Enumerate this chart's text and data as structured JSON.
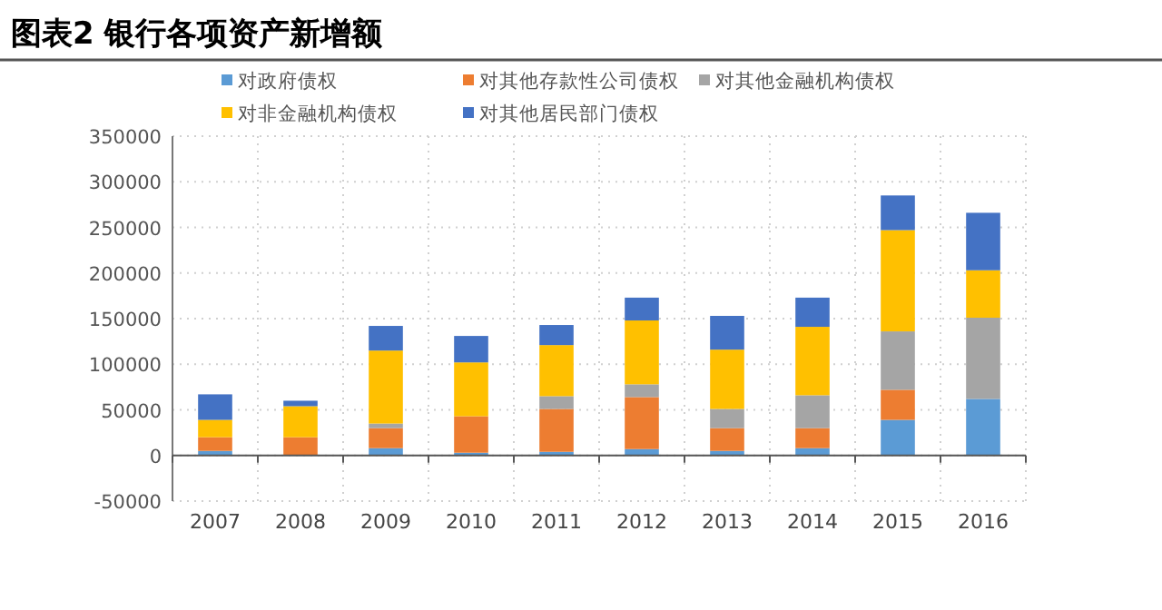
{
  "chart_data": {
    "type": "bar",
    "title": "图表2  银行各项资产新增额",
    "stacked": true,
    "categories": [
      "2007",
      "2008",
      "2009",
      "2010",
      "2011",
      "2012",
      "2013",
      "2014",
      "2015",
      "2016"
    ],
    "series": [
      {
        "name": "对政府债权",
        "color": "#5b9bd5",
        "values": [
          5000,
          0,
          8000,
          3000,
          4000,
          7000,
          5000,
          8000,
          39000,
          62000
        ]
      },
      {
        "name": "对其他存款性公司债权",
        "color": "#ed7d31",
        "values": [
          15000,
          20000,
          22000,
          40000,
          47000,
          57000,
          25000,
          22000,
          33000,
          0
        ]
      },
      {
        "name": "对其他金融机构债权",
        "color": "#a5a5a5",
        "values": [
          null,
          0,
          5000,
          null,
          14000,
          14000,
          21000,
          36000,
          64000,
          89000
        ]
      },
      {
        "name": "对非金融机构债权",
        "color": "#ffc000",
        "values": [
          19000,
          34000,
          80000,
          59000,
          56000,
          70000,
          65000,
          75000,
          111000,
          52000
        ]
      },
      {
        "name": "对其他居民部门债权",
        "color": "#4472c4",
        "values": [
          28000,
          6000,
          27000,
          29000,
          22000,
          25000,
          37000,
          32000,
          38000,
          63000
        ]
      }
    ],
    "ylim": [
      -50000,
      350000
    ],
    "yticks": [
      -50000,
      0,
      50000,
      100000,
      150000,
      200000,
      250000,
      300000,
      350000
    ],
    "grid": true,
    "legend": "top"
  }
}
